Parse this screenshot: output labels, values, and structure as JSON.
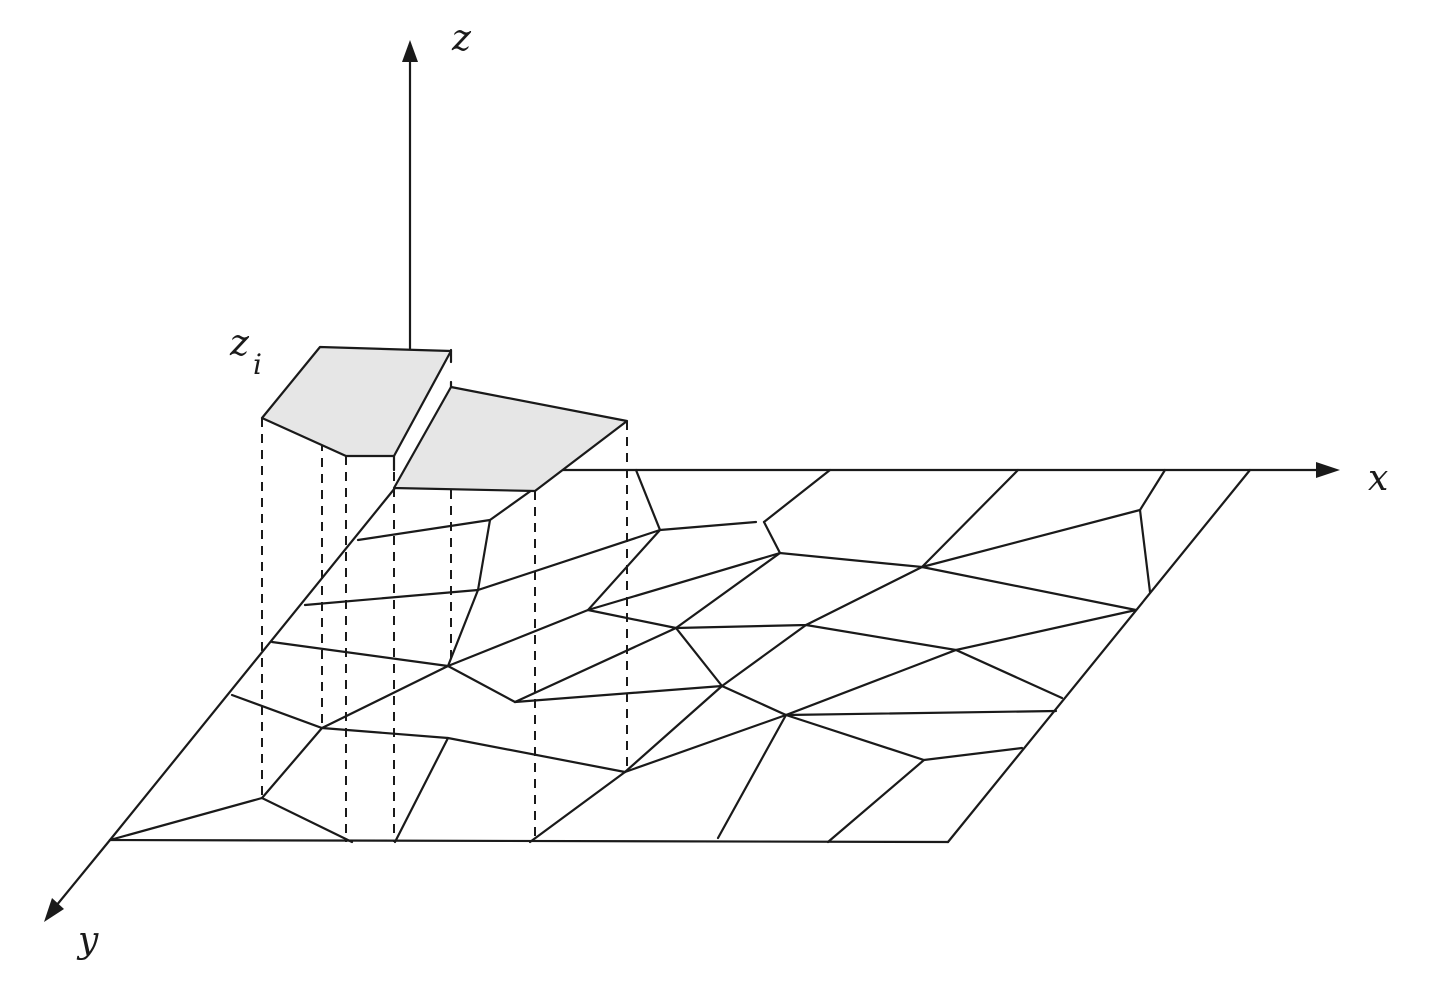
{
  "labels": {
    "z_axis": "z",
    "x_axis": "x",
    "y_axis": "y",
    "zi_main": "z",
    "zi_sub": "i"
  },
  "colors": {
    "raised_fill": "#e6e6e6",
    "stroke": "#1a1a1a"
  }
}
